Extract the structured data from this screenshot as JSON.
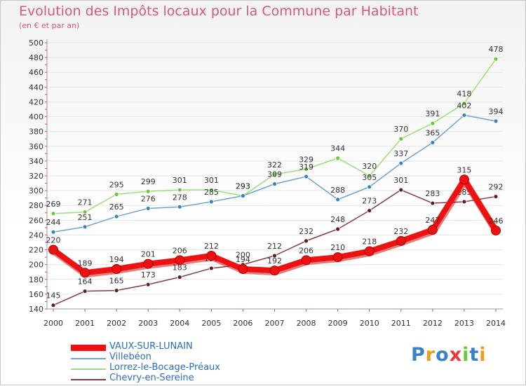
{
  "title": "Evolution des Impôts locaux pour la Commune par Habitant",
  "subtitle": "(en € et par an)",
  "logo_text": "Proxiti",
  "colors": {
    "title": "#d35a7a",
    "axis_text": "#333333",
    "grid": "#e6e6e6",
    "axis_ticks": "#e0406a"
  },
  "chart_data": {
    "type": "line",
    "title": "Evolution des Impôts locaux pour la Commune par Habitant",
    "subtitle": "(en € et par an)",
    "xlabel": "",
    "ylabel": "",
    "ylim": [
      140,
      500
    ],
    "yticks": [
      140,
      160,
      180,
      200,
      220,
      240,
      260,
      280,
      300,
      320,
      340,
      360,
      380,
      400,
      420,
      440,
      460,
      480,
      500
    ],
    "categories": [
      "2000",
      "2001",
      "2002",
      "2003",
      "2004",
      "2005",
      "2006",
      "2007",
      "2008",
      "2009",
      "2010",
      "2011",
      "2012",
      "2013",
      "2014"
    ],
    "legend_position": "bottom-left",
    "series": [
      {
        "name": "Lorrez-le-Bocage-Préaux",
        "color": "#99e07a",
        "marker": "#66cc33",
        "values": [
          269,
          271,
          295,
          299,
          301,
          301,
          293,
          322,
          329,
          344,
          320,
          370,
          391,
          418,
          478
        ]
      },
      {
        "name": "Villebéon",
        "color": "#6aa3d3",
        "marker": "#3a82c4",
        "values": [
          244,
          251,
          265,
          276,
          278,
          285,
          293,
          309,
          319,
          288,
          305,
          337,
          365,
          402,
          394
        ]
      },
      {
        "name": "Chevry-en-Sereine",
        "color": "#8a3b3b",
        "marker": "#5e1f1f",
        "values": [
          145,
          164,
          165,
          173,
          183,
          195,
          200,
          212,
          232,
          248,
          273,
          301,
          283,
          285,
          292
        ]
      },
      {
        "name": "VAUX-SUR-LUNAIN",
        "color": "#ee1111",
        "marker": "#ee1111",
        "bold": true,
        "values": [
          220,
          189,
          194,
          201,
          206,
          212,
          194,
          192,
          206,
          210,
          218,
          232,
          247,
          315,
          246
        ]
      }
    ],
    "legend_order": [
      "VAUX-SUR-LUNAIN",
      "Villebéon",
      "Lorrez-le-Bocage-Préaux",
      "Chevry-en-Sereine"
    ]
  }
}
